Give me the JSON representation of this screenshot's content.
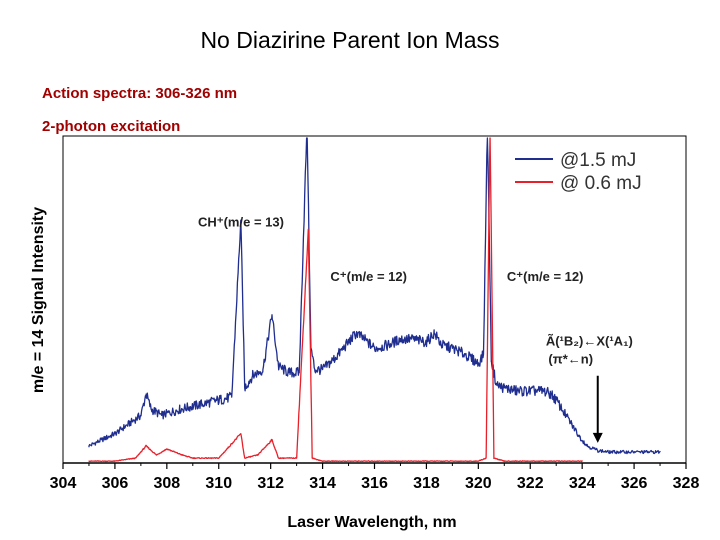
{
  "slide": {
    "title": "No Diazirine Parent Ion Mass",
    "lines": [
      "Action spectra: 306-326 nm",
      "2-photon excitation"
    ],
    "line_color": "#a00000"
  },
  "chart_data": {
    "type": "line",
    "xlabel": "Laser Wavelength, nm",
    "ylabel": "m/e = 14 Signal Intensity",
    "xlim": [
      304,
      328
    ],
    "xticks": [
      304,
      306,
      308,
      310,
      312,
      314,
      316,
      318,
      320,
      322,
      324,
      326,
      328
    ],
    "ylim": [
      0,
      1
    ],
    "grid": false,
    "legend": "top-right",
    "series": [
      {
        "name": "@1.5 mJ",
        "color": "#1f2e8f",
        "x": [
          305.0,
          305.5,
          306.0,
          306.5,
          307.0,
          307.2,
          307.4,
          307.8,
          308.5,
          309.5,
          310.5,
          310.85,
          311.0,
          311.3,
          311.7,
          312.05,
          312.3,
          312.7,
          313.1,
          313.4,
          313.55,
          313.7,
          314.0,
          314.5,
          315.0,
          315.3,
          315.6,
          316.0,
          316.5,
          317.0,
          317.5,
          318.0,
          318.3,
          318.6,
          319.0,
          319.5,
          320.0,
          320.2,
          320.35,
          320.5,
          320.7,
          321.0,
          321.5,
          322.0,
          322.5,
          322.8,
          323.0,
          323.3,
          323.6,
          323.9,
          324.2,
          324.6,
          325.0,
          326.0,
          327.0
        ],
        "y": [
          0.02,
          0.04,
          0.06,
          0.09,
          0.12,
          0.19,
          0.14,
          0.12,
          0.14,
          0.16,
          0.18,
          0.76,
          0.21,
          0.25,
          0.27,
          0.45,
          0.28,
          0.26,
          0.26,
          1.08,
          0.34,
          0.27,
          0.27,
          0.31,
          0.36,
          0.39,
          0.37,
          0.34,
          0.35,
          0.37,
          0.37,
          0.36,
          0.39,
          0.35,
          0.34,
          0.32,
          0.29,
          0.32,
          1.08,
          0.3,
          0.22,
          0.21,
          0.2,
          0.2,
          0.2,
          0.19,
          0.17,
          0.13,
          0.09,
          0.05,
          0.02,
          0.005,
          0.0,
          0.0,
          0.0
        ]
      },
      {
        "name": "@ 0.6 mJ",
        "color": "#e8202a",
        "x": [
          305.0,
          306.0,
          306.8,
          307.2,
          307.6,
          308.0,
          308.6,
          309.0,
          310.0,
          310.85,
          311.0,
          311.5,
          312.05,
          312.3,
          313.0,
          313.45,
          313.6,
          314.0,
          316.0,
          318.0,
          320.0,
          320.3,
          320.45,
          320.6,
          321.0,
          323.0,
          324.0
        ],
        "y": [
          -0.03,
          -0.03,
          -0.02,
          0.02,
          -0.01,
          0.01,
          -0.01,
          -0.02,
          -0.02,
          0.06,
          -0.02,
          -0.01,
          0.04,
          -0.02,
          -0.02,
          0.73,
          -0.02,
          -0.03,
          -0.03,
          -0.03,
          -0.03,
          -0.02,
          1.08,
          -0.02,
          -0.03,
          -0.03,
          -0.03
        ]
      }
    ],
    "annotations": [
      {
        "text": "CH⁺(m/e = 13)",
        "x": 309.2,
        "y": 0.74
      },
      {
        "text": "C⁺(m/e = 12)",
        "x": 314.3,
        "y": 0.56
      },
      {
        "text": "C⁺(m/e = 12)",
        "x": 321.1,
        "y": 0.56
      },
      {
        "text": "Ã(¹B₂)←X(¹A₁)",
        "x": 322.6,
        "y": 0.35
      },
      {
        "text": "(π*←n)",
        "x": 322.7,
        "y": 0.29
      }
    ],
    "arrow": {
      "x": 324.6,
      "y_from": 0.25,
      "y_to": 0.03
    }
  }
}
